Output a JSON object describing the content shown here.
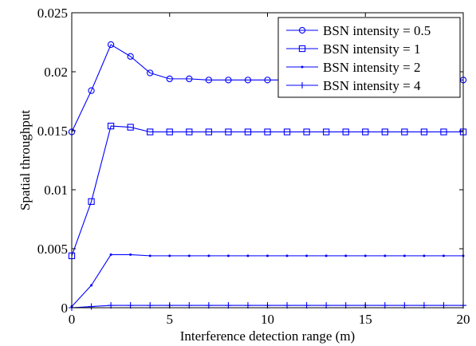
{
  "chart_data": {
    "type": "line",
    "title": "",
    "xlabel": "Interference detection range (m)",
    "ylabel": "Spatial throughput",
    "xlim": [
      0,
      20
    ],
    "ylim": [
      0,
      0.025
    ],
    "x_ticks": [
      0,
      5,
      10,
      15,
      20
    ],
    "x_tick_labels": [
      "0",
      "5",
      "10",
      "15",
      "20"
    ],
    "y_ticks": [
      0,
      0.005,
      0.01,
      0.015,
      0.02,
      0.025
    ],
    "y_tick_labels": [
      "0",
      "0.005",
      "0.01",
      "0.015",
      "0.02",
      "0.025"
    ],
    "grid": false,
    "legend_position": "top-right",
    "line_color": "#0000ff",
    "x": [
      0,
      1,
      2,
      3,
      4,
      5,
      6,
      7,
      8,
      9,
      10,
      11,
      12,
      13,
      14,
      15,
      16,
      17,
      18,
      19,
      20
    ],
    "series": [
      {
        "name": "BSN intensity = 0.5",
        "marker": "circle",
        "values": [
          0.0149,
          0.0184,
          0.0223,
          0.0213,
          0.0199,
          0.0194,
          0.0194,
          0.0193,
          0.0193,
          0.0193,
          0.0193,
          0.0193,
          0.0193,
          0.0193,
          0.0193,
          0.0193,
          0.0193,
          0.0193,
          0.0193,
          0.0193,
          0.0193
        ]
      },
      {
        "name": "BSN intensity = 1",
        "marker": "square",
        "values": [
          0.0044,
          0.009,
          0.0154,
          0.0153,
          0.0149,
          0.0149,
          0.0149,
          0.0149,
          0.0149,
          0.0149,
          0.0149,
          0.0149,
          0.0149,
          0.0149,
          0.0149,
          0.0149,
          0.0149,
          0.0149,
          0.0149,
          0.0149,
          0.0149
        ]
      },
      {
        "name": "BSN intensity = 2",
        "marker": "dot",
        "values": [
          0.0001,
          0.0019,
          0.0045,
          0.0045,
          0.0044,
          0.0044,
          0.0044,
          0.0044,
          0.0044,
          0.0044,
          0.0044,
          0.0044,
          0.0044,
          0.0044,
          0.0044,
          0.0044,
          0.0044,
          0.0044,
          0.0044,
          0.0044,
          0.0044
        ]
      },
      {
        "name": "BSN intensity = 4",
        "marker": "plus",
        "values": [
          0.0,
          0.0001,
          0.0002,
          0.0002,
          0.0002,
          0.0002,
          0.0002,
          0.0002,
          0.0002,
          0.0002,
          0.0002,
          0.0002,
          0.0002,
          0.0002,
          0.0002,
          0.0002,
          0.0002,
          0.0002,
          0.0002,
          0.0002,
          0.0002
        ]
      }
    ]
  }
}
